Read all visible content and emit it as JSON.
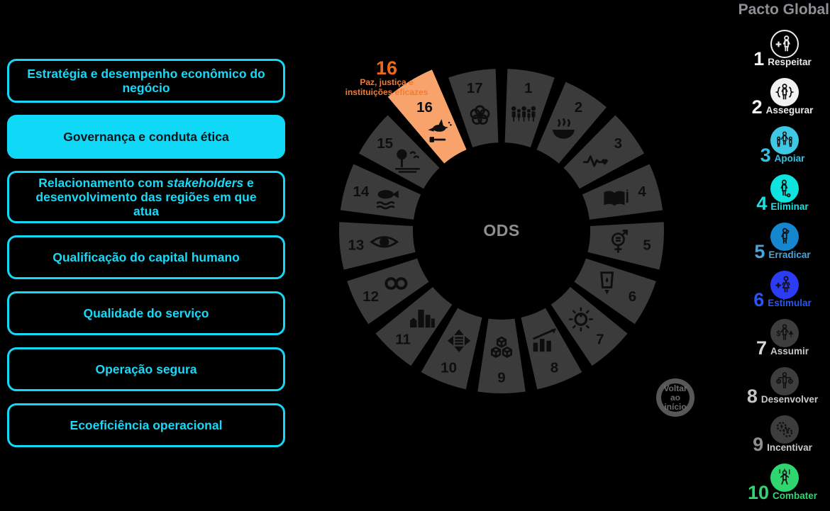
{
  "colors": {
    "background": "#000000",
    "accent_cyan": "#10d8f7",
    "segment_gray": "#3b3b3b",
    "selected_orange": "#f9a36c",
    "callout_orange": "#ed671c",
    "icon_black": "#0e0e0e",
    "center_label_gray": "#8e8e8e"
  },
  "left_menu": {
    "items": [
      {
        "label": "Estratégia e desempenho econômico do negócio",
        "active": false
      },
      {
        "label": "Governança e conduta ética",
        "active": true
      },
      {
        "label": "Relacionamento com *stakeholders* e desenvolvimento das regiões em que atua",
        "active": false
      },
      {
        "label": "Qualificação do capital humano",
        "active": false
      },
      {
        "label": "Qualidade do serviço",
        "active": false
      },
      {
        "label": "Operação segura",
        "active": false
      },
      {
        "label": "Ecoeficiência operacional",
        "active": false
      }
    ]
  },
  "wheel": {
    "center_label": "ODS",
    "selected_segment": 16,
    "callout": {
      "number": "16",
      "lines": [
        "Paz, justiça e",
        "instituições eficazes"
      ]
    },
    "back_button": {
      "lines": [
        "Voltar",
        "ao início"
      ]
    },
    "segments": [
      {
        "num": 1,
        "icon": "family-people-icon"
      },
      {
        "num": 2,
        "icon": "steaming-bowl-icon"
      },
      {
        "num": 3,
        "icon": "heartbeat-icon"
      },
      {
        "num": 4,
        "icon": "open-book-icon"
      },
      {
        "num": 5,
        "icon": "gender-equality-icon"
      },
      {
        "num": 6,
        "icon": "water-glass-drop-icon"
      },
      {
        "num": 7,
        "icon": "sun-power-icon"
      },
      {
        "num": 8,
        "icon": "growth-chart-icon"
      },
      {
        "num": 9,
        "icon": "cubes-icon"
      },
      {
        "num": 10,
        "icon": "equality-arrows-icon"
      },
      {
        "num": 11,
        "icon": "city-buildings-icon"
      },
      {
        "num": 12,
        "icon": "infinity-loop-icon"
      },
      {
        "num": 13,
        "icon": "eye-globe-icon"
      },
      {
        "num": 14,
        "icon": "fish-waves-icon"
      },
      {
        "num": 15,
        "icon": "tree-birds-icon"
      },
      {
        "num": 16,
        "icon": "dove-gavel-icon"
      },
      {
        "num": 17,
        "icon": "flower-rings-icon"
      }
    ]
  },
  "pacto": {
    "title": "Pacto Global",
    "items": [
      {
        "num": "1",
        "label": "Respeitar",
        "icon": "person-plus-icon",
        "circle_style": "outline",
        "circle_color": "#ececec",
        "icon_color": "#ececec",
        "num_color": "#f4f4f4",
        "label_color": "#eaeaea"
      },
      {
        "num": "2",
        "label": "Assegurar",
        "icon": "person-braces-icon",
        "circle_style": "fill",
        "circle_color": "#f2f2f2",
        "icon_color": "#111111",
        "num_color": "#f4f4f4",
        "label_color": "#eaeaea"
      },
      {
        "num": "3",
        "label": "Apoiar",
        "icon": "people-group-icon",
        "circle_style": "fill",
        "circle_color": "#3fc8e4",
        "icon_color": "#111111",
        "num_color": "#2ec6e8",
        "label_color": "#2ec6e8"
      },
      {
        "num": "4",
        "label": "Eliminar",
        "icon": "person-chain-icon",
        "circle_style": "fill",
        "circle_color": "#0ee4dd",
        "icon_color": "#111111",
        "num_color": "#17e2e0",
        "label_color": "#17e2e0"
      },
      {
        "num": "5",
        "label": "Erradicar",
        "icon": "person-wiping-icon",
        "circle_style": "fill",
        "circle_color": "#1487cf",
        "icon_color": "#111111",
        "num_color": "#4aa4da",
        "label_color": "#4aa4da"
      },
      {
        "num": "6",
        "label": "Estimular",
        "icon": "woman-plus-icon",
        "circle_style": "fill",
        "circle_color": "#2b3cf4",
        "icon_color": "#111111",
        "num_color": "#2b55f2",
        "label_color": "#2b55f2"
      },
      {
        "num": "7",
        "label": "Assumir",
        "icon": "person-dollar-tree-icon",
        "circle_style": "fill",
        "circle_color": "#3d3d3d",
        "icon_color": "#111111",
        "num_color": "#d7d7d7",
        "label_color": "#c8c8c8"
      },
      {
        "num": "8",
        "label": "Desenvolver",
        "icon": "person-balance-icon",
        "circle_style": "fill",
        "circle_color": "#3d3d3d",
        "icon_color": "#111111",
        "num_color": "#c4c4c4",
        "label_color": "#c8c8c8"
      },
      {
        "num": "9",
        "label": "Incentivar",
        "icon": "gears-icon",
        "circle_style": "fill",
        "circle_color": "#3d3d3d",
        "icon_color": "#111111",
        "num_color": "#909090",
        "label_color": "#c8c8c8"
      },
      {
        "num": "10",
        "label": "Combater",
        "icon": "marionette-person-icon",
        "circle_style": "fill",
        "circle_color": "#2fd56e",
        "icon_color": "#111111",
        "num_color": "#2fd56e",
        "label_color": "#2fd56e"
      }
    ]
  }
}
